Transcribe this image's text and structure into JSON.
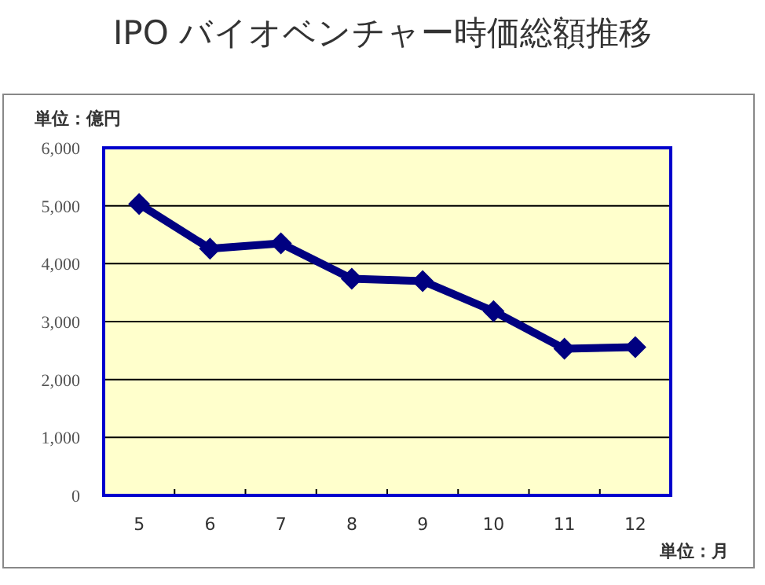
{
  "chart_data": {
    "type": "line",
    "title": "IPO バイオベンチャー時価総額推移",
    "xlabel": "単位：月",
    "ylabel": "単位：億円",
    "categories": [
      "5",
      "6",
      "7",
      "8",
      "9",
      "10",
      "11",
      "12"
    ],
    "series": [
      {
        "color": "#000080",
        "values": [
          5030,
          4260,
          4350,
          3740,
          3700,
          3180,
          2530,
          2560
        ]
      }
    ],
    "ylim": [
      0,
      6000
    ],
    "yticks": [
      0,
      {
        "value": 1000,
        "label": "1,000"
      },
      {
        "value": 2000,
        "label": "2,000"
      },
      {
        "value": 3000,
        "label": "3,000"
      },
      {
        "value": 4000,
        "label": "4,000"
      },
      {
        "value": 5000,
        "label": "5,000"
      },
      {
        "value": 6000,
        "label": "6,000"
      }
    ],
    "grid": "y",
    "marker": "diamond",
    "line_style": "solid"
  }
}
